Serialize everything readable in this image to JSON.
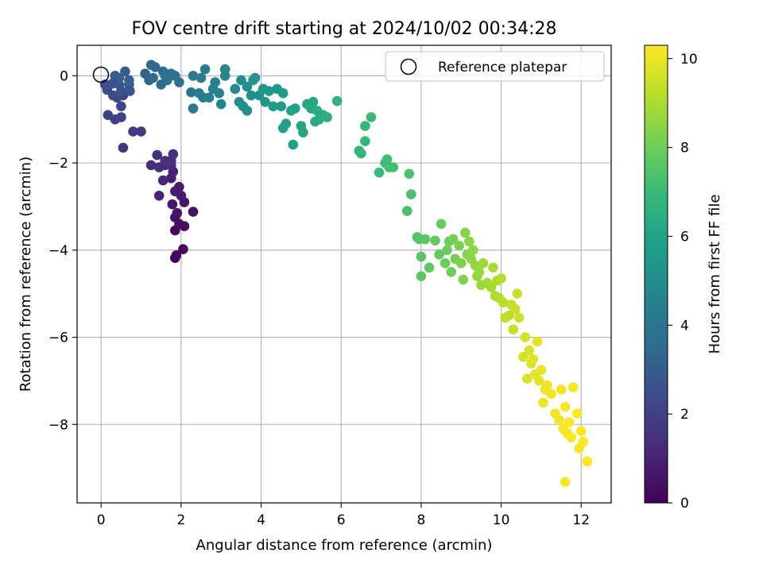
{
  "chart_data": {
    "type": "scatter",
    "title": "FOV centre drift starting at 2024/10/02 00:34:28",
    "xlabel": "Angular distance from reference (arcmin)",
    "ylabel": "Rotation from reference (arcmin)",
    "xlim": [
      -0.6,
      12.75
    ],
    "ylim": [
      -9.8,
      0.7
    ],
    "xticks": [
      0,
      2,
      4,
      6,
      8,
      10,
      12
    ],
    "yticks": [
      0,
      -2,
      -4,
      -6,
      -8
    ],
    "grid": true,
    "legend": {
      "position": "top-right",
      "entries": [
        "Reference platepar"
      ]
    },
    "reference_point": {
      "x": 0,
      "y": 0
    },
    "colorbar": {
      "label": "Hours from first FF file",
      "range": [
        0,
        10.3
      ],
      "ticks": [
        0,
        2,
        4,
        6,
        8,
        10
      ],
      "colormap": "viridis"
    },
    "colormap_stops": [
      "#440154",
      "#482878",
      "#3e4989",
      "#31688e",
      "#26828e",
      "#1f9e89",
      "#35b779",
      "#6ece58",
      "#b5de2b",
      "#fde725"
    ],
    "points": [
      [
        1.88,
        -4.12,
        0.1
      ],
      [
        1.85,
        -4.18,
        0.15
      ],
      [
        2.05,
        -3.98,
        0.2
      ],
      [
        1.85,
        -3.55,
        0.3
      ],
      [
        2.08,
        -3.45,
        0.35
      ],
      [
        1.95,
        -3.4,
        0.4
      ],
      [
        1.85,
        -3.25,
        0.45
      ],
      [
        2.3,
        -3.12,
        0.5
      ],
      [
        1.9,
        -3.15,
        0.55
      ],
      [
        2.08,
        -2.9,
        0.6
      ],
      [
        1.78,
        -2.95,
        0.7
      ],
      [
        2.0,
        -2.75,
        0.75
      ],
      [
        1.85,
        -2.65,
        0.8
      ],
      [
        1.95,
        -2.55,
        0.85
      ],
      [
        1.75,
        -2.35,
        0.9
      ],
      [
        1.8,
        -2.2,
        1.0
      ],
      [
        1.45,
        -2.75,
        1.05
      ],
      [
        1.55,
        -2.4,
        1.1
      ],
      [
        1.75,
        -2.05,
        1.2
      ],
      [
        1.6,
        -2.05,
        1.25
      ],
      [
        1.45,
        -2.1,
        1.3
      ],
      [
        1.25,
        -2.05,
        1.35
      ],
      [
        1.4,
        -1.82,
        1.4
      ],
      [
        1.8,
        -1.8,
        1.45
      ],
      [
        1.75,
        -1.95,
        1.5
      ],
      [
        1.6,
        -1.95,
        1.55
      ],
      [
        0.55,
        -1.65,
        1.7
      ],
      [
        0.8,
        -1.28,
        1.8
      ],
      [
        1.0,
        -1.28,
        1.85
      ],
      [
        0.35,
        -1.0,
        1.95
      ],
      [
        0.5,
        -0.95,
        2.0
      ],
      [
        0.17,
        -0.9,
        2.05
      ],
      [
        0.5,
        -0.7,
        2.1
      ],
      [
        0.55,
        -0.45,
        2.2
      ],
      [
        0.4,
        -0.5,
        2.3
      ],
      [
        0.3,
        -0.45,
        2.35
      ],
      [
        0.15,
        -0.32,
        2.4
      ],
      [
        0.1,
        -0.2,
        2.5
      ],
      [
        0.28,
        -0.18,
        2.55
      ],
      [
        0.45,
        -0.2,
        2.65
      ],
      [
        0.5,
        -0.35,
        2.7
      ],
      [
        0.72,
        -0.35,
        2.75
      ],
      [
        0.7,
        -0.2,
        2.8
      ],
      [
        0.35,
        0.0,
        2.9
      ],
      [
        0.6,
        0.1,
        3.0
      ],
      [
        0.45,
        -0.05,
        3.05
      ],
      [
        0.7,
        -0.1,
        3.15
      ],
      [
        1.1,
        0.05,
        3.25
      ],
      [
        1.2,
        -0.1,
        3.3
      ],
      [
        1.25,
        0.25,
        3.4
      ],
      [
        1.35,
        0.2,
        3.45
      ],
      [
        1.3,
        -0.05,
        3.5
      ],
      [
        1.55,
        0.1,
        3.55
      ],
      [
        1.5,
        -0.2,
        3.65
      ],
      [
        1.65,
        -0.1,
        3.7
      ],
      [
        1.75,
        0.05,
        3.75
      ],
      [
        1.85,
        0.0,
        3.8
      ],
      [
        1.95,
        -0.15,
        3.9
      ],
      [
        1.6,
        0.0,
        3.95
      ],
      [
        2.3,
        -0.75,
        4.1
      ],
      [
        2.25,
        -0.38,
        4.15
      ],
      [
        2.3,
        0.0,
        4.2
      ],
      [
        2.45,
        -0.4,
        4.3
      ],
      [
        2.5,
        -0.05,
        4.35
      ],
      [
        2.6,
        0.15,
        4.4
      ],
      [
        2.55,
        -0.5,
        4.45
      ],
      [
        2.7,
        -0.5,
        4.5
      ],
      [
        2.8,
        -0.3,
        4.55
      ],
      [
        2.85,
        -0.15,
        4.6
      ],
      [
        2.95,
        -0.4,
        4.65
      ],
      [
        3.0,
        -0.65,
        4.7
      ],
      [
        3.1,
        0.15,
        4.75
      ],
      [
        3.1,
        0.0,
        4.8
      ],
      [
        3.35,
        -0.3,
        4.9
      ],
      [
        3.45,
        -0.6,
        4.95
      ],
      [
        3.5,
        -0.1,
        5.0
      ],
      [
        3.55,
        -0.7,
        5.05
      ],
      [
        3.65,
        -0.8,
        5.1
      ],
      [
        3.65,
        -0.25,
        5.15
      ],
      [
        3.75,
        -0.45,
        5.2
      ],
      [
        3.8,
        -0.1,
        5.25
      ],
      [
        3.85,
        -0.05,
        5.3
      ],
      [
        3.95,
        -0.45,
        5.35
      ],
      [
        4.05,
        -0.3,
        5.4
      ],
      [
        4.1,
        -0.6,
        5.45
      ],
      [
        4.2,
        -0.35,
        5.5
      ],
      [
        4.3,
        -0.7,
        5.55
      ],
      [
        4.4,
        -0.3,
        5.6
      ],
      [
        4.5,
        -0.7,
        5.65
      ],
      [
        4.55,
        -0.4,
        5.7
      ],
      [
        4.55,
        -1.2,
        5.75
      ],
      [
        4.62,
        -1.1,
        5.8
      ],
      [
        4.75,
        -0.8,
        5.85
      ],
      [
        4.8,
        -1.58,
        5.9
      ],
      [
        4.85,
        -0.75,
        5.95
      ],
      [
        5.0,
        -1.15,
        6.0
      ],
      [
        5.05,
        -1.3,
        6.05
      ],
      [
        5.15,
        -0.65,
        6.1
      ],
      [
        5.25,
        -0.75,
        6.15
      ],
      [
        5.3,
        -0.6,
        6.2
      ],
      [
        5.35,
        -1.05,
        6.25
      ],
      [
        5.4,
        -0.8,
        6.3
      ],
      [
        5.45,
        -1.0,
        6.35
      ],
      [
        5.55,
        -0.9,
        6.4
      ],
      [
        5.65,
        -0.95,
        6.45
      ],
      [
        5.9,
        -0.58,
        6.55
      ],
      [
        6.45,
        -1.72,
        6.7
      ],
      [
        6.5,
        -1.78,
        6.75
      ],
      [
        6.6,
        -1.15,
        6.8
      ],
      [
        6.6,
        -1.5,
        6.85
      ],
      [
        6.75,
        -0.95,
        6.9
      ],
      [
        6.95,
        -2.22,
        6.95
      ],
      [
        7.1,
        -2.0,
        7.0
      ],
      [
        7.15,
        -1.92,
        7.05
      ],
      [
        7.2,
        -2.1,
        7.1
      ],
      [
        7.3,
        -2.1,
        7.15
      ],
      [
        7.65,
        -3.1,
        7.25
      ],
      [
        7.7,
        -2.25,
        7.3
      ],
      [
        7.75,
        -2.72,
        7.35
      ],
      [
        7.9,
        -3.7,
        7.45
      ],
      [
        7.95,
        -3.75,
        7.5
      ],
      [
        8.0,
        -4.15,
        7.55
      ],
      [
        8.0,
        -4.6,
        7.6
      ],
      [
        8.1,
        -3.75,
        7.65
      ],
      [
        8.2,
        -4.4,
        7.7
      ],
      [
        8.35,
        -3.78,
        7.75
      ],
      [
        8.45,
        -4.1,
        7.8
      ],
      [
        8.5,
        -3.4,
        7.85
      ],
      [
        8.6,
        -4.3,
        7.9
      ],
      [
        8.65,
        -4.0,
        7.95
      ],
      [
        8.7,
        -3.8,
        8.0
      ],
      [
        8.75,
        -4.5,
        8.05
      ],
      [
        8.8,
        -3.75,
        8.1
      ],
      [
        8.85,
        -4.2,
        8.15
      ],
      [
        8.95,
        -3.9,
        8.2
      ],
      [
        9.0,
        -4.3,
        8.25
      ],
      [
        9.05,
        -4.68,
        8.3
      ],
      [
        9.1,
        -3.6,
        8.35
      ],
      [
        9.15,
        -4.1,
        8.4
      ],
      [
        9.2,
        -3.8,
        8.45
      ],
      [
        9.25,
        -4.2,
        8.5
      ],
      [
        9.3,
        -4.0,
        8.55
      ],
      [
        9.35,
        -4.35,
        8.6
      ],
      [
        9.4,
        -4.6,
        8.65
      ],
      [
        9.45,
        -4.5,
        8.7
      ],
      [
        9.5,
        -4.8,
        8.75
      ],
      [
        9.55,
        -4.3,
        8.8
      ],
      [
        9.65,
        -4.75,
        8.85
      ],
      [
        9.75,
        -4.85,
        8.9
      ],
      [
        9.8,
        -4.4,
        8.95
      ],
      [
        9.85,
        -5.05,
        9.0
      ],
      [
        9.9,
        -4.7,
        9.05
      ],
      [
        9.95,
        -5.1,
        9.1
      ],
      [
        10.0,
        -4.65,
        9.15
      ],
      [
        10.05,
        -5.2,
        9.2
      ],
      [
        10.1,
        -5.55,
        9.25
      ],
      [
        10.2,
        -5.5,
        9.3
      ],
      [
        10.25,
        -5.25,
        9.35
      ],
      [
        10.3,
        -5.82,
        9.4
      ],
      [
        10.35,
        -5.35,
        9.45
      ],
      [
        10.4,
        -5.0,
        9.5
      ],
      [
        10.45,
        -5.55,
        9.55
      ],
      [
        10.55,
        -6.45,
        9.6
      ],
      [
        10.6,
        -6.0,
        9.65
      ],
      [
        10.65,
        -6.95,
        9.7
      ],
      [
        10.7,
        -6.3,
        9.75
      ],
      [
        10.75,
        -6.6,
        9.8
      ],
      [
        10.8,
        -6.5,
        9.85
      ],
      [
        10.85,
        -6.85,
        9.9
      ],
      [
        10.9,
        -6.1,
        9.9
      ],
      [
        10.95,
        -7.0,
        9.95
      ],
      [
        11.0,
        -6.75,
        10.0
      ],
      [
        11.05,
        -7.5,
        10.0
      ],
      [
        11.1,
        -7.2,
        10.05
      ],
      [
        11.15,
        -7.1,
        10.05
      ],
      [
        11.25,
        -7.3,
        10.1
      ],
      [
        11.35,
        -7.75,
        10.1
      ],
      [
        11.45,
        -7.9,
        10.15
      ],
      [
        11.5,
        -7.2,
        10.15
      ],
      [
        11.55,
        -8.1,
        10.2
      ],
      [
        11.6,
        -7.6,
        10.2
      ],
      [
        11.65,
        -8.2,
        10.2
      ],
      [
        11.7,
        -7.95,
        10.25
      ],
      [
        11.75,
        -8.3,
        10.25
      ],
      [
        11.8,
        -7.15,
        10.25
      ],
      [
        11.9,
        -7.75,
        10.3
      ],
      [
        11.95,
        -8.55,
        10.3
      ],
      [
        12.0,
        -8.15,
        10.3
      ],
      [
        12.05,
        -8.4,
        10.3
      ],
      [
        11.6,
        -9.32,
        10.3
      ],
      [
        12.15,
        -8.85,
        10.3
      ]
    ]
  }
}
